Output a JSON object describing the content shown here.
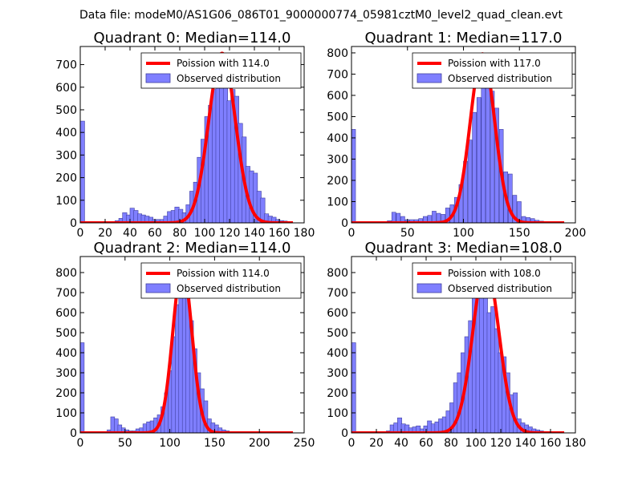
{
  "suptitle": "Data file: modeM0/AS1G06_086T01_9000000774_05981cztM0_level2_quad_clean.evt",
  "colors": {
    "bar_fill": "#7f7fff",
    "bar_edge": "#4040a0",
    "poisson": "#ff0000"
  },
  "chart_data": [
    {
      "type": "bar",
      "title": "Quadrant 0: Median=114.0",
      "xlabel": "",
      "ylabel": "",
      "xlim": [
        0,
        180
      ],
      "ylim": [
        0,
        780
      ],
      "xticks": [
        0,
        20,
        40,
        60,
        80,
        100,
        120,
        140,
        160,
        180
      ],
      "yticks": [
        0,
        100,
        200,
        300,
        400,
        500,
        600,
        700
      ],
      "bin_width": 3.5,
      "bins": [
        [
          0,
          450
        ],
        [
          28,
          10
        ],
        [
          31,
          20
        ],
        [
          34,
          45
        ],
        [
          37,
          35
        ],
        [
          40,
          65
        ],
        [
          43,
          55
        ],
        [
          46,
          40
        ],
        [
          49,
          35
        ],
        [
          52,
          30
        ],
        [
          55,
          25
        ],
        [
          58,
          15
        ],
        [
          61,
          15
        ],
        [
          64,
          15
        ],
        [
          67,
          30
        ],
        [
          70,
          50
        ],
        [
          73,
          55
        ],
        [
          76,
          70
        ],
        [
          79,
          60
        ],
        [
          82,
          45
        ],
        [
          85,
          80
        ],
        [
          88,
          140
        ],
        [
          91,
          180
        ],
        [
          94,
          290
        ],
        [
          97,
          370
        ],
        [
          100,
          470
        ],
        [
          103,
          520
        ],
        [
          106,
          590
        ],
        [
          109,
          620
        ],
        [
          112,
          670
        ],
        [
          115,
          600
        ],
        [
          118,
          540
        ],
        [
          121,
          590
        ],
        [
          124,
          560
        ],
        [
          127,
          440
        ],
        [
          130,
          380
        ],
        [
          133,
          250
        ],
        [
          136,
          230
        ],
        [
          139,
          220
        ],
        [
          142,
          140
        ],
        [
          145,
          110
        ],
        [
          148,
          40
        ],
        [
          151,
          30
        ],
        [
          154,
          25
        ],
        [
          157,
          15
        ],
        [
          160,
          10
        ],
        [
          163,
          8
        ],
        [
          166,
          5
        ]
      ],
      "poisson": {
        "name": "Poission with 114.0",
        "mean": 114.0,
        "peak": 750
      },
      "series": [
        {
          "name": "Poission with 114.0"
        },
        {
          "name": "Observed distribution"
        }
      ],
      "legend": "top-right"
    },
    {
      "type": "bar",
      "title": "Quadrant 1: Median=117.0",
      "xlabel": "",
      "ylabel": "",
      "xlim": [
        0,
        200
      ],
      "ylim": [
        0,
        830
      ],
      "xticks": [
        0,
        50,
        100,
        150,
        200
      ],
      "yticks": [
        0,
        100,
        200,
        300,
        400,
        500,
        600,
        700,
        800
      ],
      "bin_width": 3.6,
      "bins": [
        [
          0,
          440
        ],
        [
          32,
          10
        ],
        [
          36,
          50
        ],
        [
          40,
          45
        ],
        [
          44,
          30
        ],
        [
          48,
          15
        ],
        [
          52,
          15
        ],
        [
          56,
          15
        ],
        [
          60,
          20
        ],
        [
          64,
          30
        ],
        [
          68,
          35
        ],
        [
          72,
          55
        ],
        [
          76,
          45
        ],
        [
          80,
          40
        ],
        [
          84,
          70
        ],
        [
          88,
          85
        ],
        [
          92,
          120
        ],
        [
          96,
          180
        ],
        [
          100,
          290
        ],
        [
          104,
          390
        ],
        [
          108,
          520
        ],
        [
          112,
          590
        ],
        [
          116,
          690
        ],
        [
          120,
          720
        ],
        [
          124,
          620
        ],
        [
          128,
          540
        ],
        [
          132,
          440
        ],
        [
          136,
          240
        ],
        [
          140,
          230
        ],
        [
          144,
          130
        ],
        [
          148,
          100
        ],
        [
          152,
          30
        ],
        [
          156,
          25
        ],
        [
          160,
          20
        ],
        [
          164,
          12
        ],
        [
          168,
          8
        ],
        [
          172,
          5
        ],
        [
          176,
          3
        ]
      ],
      "poisson": {
        "name": "Poission with 117.0",
        "mean": 117.0,
        "peak": 795
      },
      "series": [
        {
          "name": "Poission with 117.0"
        },
        {
          "name": "Observed distribution"
        }
      ],
      "legend": "top-right"
    },
    {
      "type": "bar",
      "title": "Quadrant 2: Median=114.0",
      "xlabel": "",
      "ylabel": "",
      "xlim": [
        0,
        250
      ],
      "ylim": [
        0,
        880
      ],
      "xticks": [
        0,
        50,
        100,
        150,
        200,
        250
      ],
      "yticks": [
        0,
        100,
        200,
        300,
        400,
        500,
        600,
        700,
        800
      ],
      "bin_width": 4.4,
      "bins": [
        [
          0,
          450
        ],
        [
          30,
          15
        ],
        [
          34,
          80
        ],
        [
          38,
          70
        ],
        [
          42,
          40
        ],
        [
          46,
          25
        ],
        [
          50,
          15
        ],
        [
          54,
          10
        ],
        [
          58,
          10
        ],
        [
          62,
          20
        ],
        [
          66,
          25
        ],
        [
          70,
          45
        ],
        [
          74,
          55
        ],
        [
          78,
          60
        ],
        [
          82,
          75
        ],
        [
          86,
          90
        ],
        [
          90,
          130
        ],
        [
          94,
          200
        ],
        [
          98,
          310
        ],
        [
          102,
          480
        ],
        [
          106,
          640
        ],
        [
          110,
          780
        ],
        [
          114,
          730
        ],
        [
          118,
          800
        ],
        [
          122,
          560
        ],
        [
          126,
          420
        ],
        [
          130,
          300
        ],
        [
          134,
          220
        ],
        [
          138,
          160
        ],
        [
          142,
          70
        ],
        [
          146,
          50
        ],
        [
          150,
          40
        ],
        [
          154,
          25
        ],
        [
          158,
          15
        ],
        [
          162,
          10
        ],
        [
          166,
          5
        ]
      ],
      "poisson": {
        "name": "Poission with 114.0",
        "mean": 114.0,
        "peak": 830
      },
      "series": [
        {
          "name": "Poission with 114.0"
        },
        {
          "name": "Observed distribution"
        }
      ],
      "legend": "top-right"
    },
    {
      "type": "bar",
      "title": "Quadrant 3: Median=108.0",
      "xlabel": "",
      "ylabel": "",
      "xlim": [
        0,
        180
      ],
      "ylim": [
        0,
        880
      ],
      "xticks": [
        0,
        20,
        40,
        60,
        80,
        100,
        120,
        140,
        160,
        180
      ],
      "yticks": [
        0,
        100,
        200,
        300,
        400,
        500,
        600,
        700,
        800
      ],
      "bin_width": 3.4,
      "bins": [
        [
          0,
          450
        ],
        [
          28,
          10
        ],
        [
          31,
          40
        ],
        [
          34,
          50
        ],
        [
          37,
          75
        ],
        [
          40,
          45
        ],
        [
          43,
          40
        ],
        [
          46,
          25
        ],
        [
          49,
          30
        ],
        [
          52,
          35
        ],
        [
          55,
          20
        ],
        [
          58,
          35
        ],
        [
          61,
          60
        ],
        [
          64,
          45
        ],
        [
          67,
          55
        ],
        [
          70,
          70
        ],
        [
          73,
          80
        ],
        [
          76,
          110
        ],
        [
          79,
          150
        ],
        [
          82,
          250
        ],
        [
          85,
          300
        ],
        [
          88,
          400
        ],
        [
          91,
          480
        ],
        [
          94,
          560
        ],
        [
          97,
          690
        ],
        [
          100,
          770
        ],
        [
          103,
          790
        ],
        [
          106,
          720
        ],
        [
          109,
          600
        ],
        [
          112,
          630
        ],
        [
          115,
          520
        ],
        [
          118,
          400
        ],
        [
          121,
          380
        ],
        [
          124,
          300
        ],
        [
          127,
          190
        ],
        [
          130,
          200
        ],
        [
          133,
          70
        ],
        [
          136,
          50
        ],
        [
          139,
          40
        ],
        [
          142,
          30
        ],
        [
          145,
          20
        ],
        [
          148,
          15
        ],
        [
          151,
          10
        ],
        [
          154,
          5
        ]
      ],
      "poisson": {
        "name": "Poission with 108.0",
        "mean": 108.0,
        "peak": 840
      },
      "series": [
        {
          "name": "Poission with 108.0"
        },
        {
          "name": "Observed distribution"
        }
      ],
      "legend": "top-right"
    }
  ]
}
